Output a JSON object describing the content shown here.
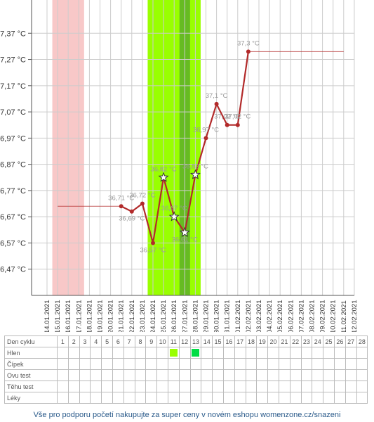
{
  "chart_data": {
    "type": "line",
    "ylabel": "",
    "xlabel": "",
    "ylim": [
      36.37,
      37.47
    ],
    "y_ticks": [
      "36,47 °C",
      "36,57 °C",
      "36,67 °C",
      "36,77 °C",
      "36,87 °C",
      "36,97 °C",
      "37,07 °C",
      "37,17 °C",
      "37,27 °C",
      "37,37 °C"
    ],
    "y_tick_values": [
      36.47,
      36.57,
      36.67,
      36.77,
      36.87,
      36.97,
      37.07,
      37.17,
      37.27,
      37.37
    ],
    "dates": [
      "14.01.2021",
      "15.01.2021",
      "16.01.2021",
      "17.01.2021",
      "18.01.2021",
      "19.01.2021",
      "20.01.2021",
      "21.01.2021",
      "22.01.2021",
      "23.01.2021",
      "24.01.2021",
      "25.01.2021",
      "26.01.2021",
      "27.01.2021",
      "28.01.2021",
      "29.01.2021",
      "30.01.2021",
      "31.01.2021",
      "01.02.2021",
      "02.02.2021",
      "03.02.2021",
      "04.02.2021",
      "05.02.2021",
      "06.02.2021",
      "07.02.2021",
      "08.02.2021",
      "09.02.2021",
      "10.02.2021",
      "11.02.2021",
      "12.02.2021"
    ],
    "x_tick_labels": [
      "14.01.2021",
      "15.01.2021",
      "16.01.2021",
      "17.01.2021",
      "18.01.2021",
      "19.01.2021",
      "20.01.2021",
      "21.01.2021",
      "22.01.2021",
      "23.01.2021",
      "24.01.2021",
      "25.01.2021",
      "26.01.2021",
      "27.01.2021",
      "28.01.2021",
      "29.01.2021",
      "30.01.2021",
      "31.01.2021",
      "01.02.2021",
      "02.02.2021",
      "03.02.2021",
      "04.02.2021",
      "05.02.2021",
      "06.02.2021",
      "07.02.2021",
      "08.02.2021",
      "09.02.2021",
      "10.02.2021",
      "11.02.2021",
      "12.02.2021"
    ],
    "series": [
      {
        "values": [
          {
            "date": "21.01.2021",
            "y": 36.71,
            "label": "36,71 °C",
            "marker": "dot"
          },
          {
            "date": "22.01.2021",
            "y": 36.69,
            "label": "36,69 °C",
            "marker": "dot"
          },
          {
            "date": "23.01.2021",
            "y": 36.72,
            "label": "36,72 °C",
            "marker": "dot"
          },
          {
            "date": "24.01.2021",
            "y": 36.57,
            "label": "36,57 °C",
            "marker": "dot"
          },
          {
            "date": "25.01.2021",
            "y": 36.82,
            "label": "36,82 °C",
            "marker": "star"
          },
          {
            "date": "26.01.2021",
            "y": 36.67,
            "label": "36,67 °C",
            "marker": "star"
          },
          {
            "date": "27.01.2021",
            "y": 36.61,
            "label": "36,61 °C",
            "marker": "star"
          },
          {
            "date": "28.01.2021",
            "y": 36.83,
            "label": "36,83 °C",
            "marker": "star"
          },
          {
            "date": "29.01.2021",
            "y": 36.97,
            "label": "36,97 °C",
            "marker": "dot"
          },
          {
            "date": "30.01.2021",
            "y": 37.1,
            "label": "37,1 °C",
            "marker": "dot"
          },
          {
            "date": "31.01.2021",
            "y": 37.02,
            "label": "37,02 °C",
            "marker": "dot"
          },
          {
            "date": "01.02.2021",
            "y": 37.02,
            "label": "37,02 °C",
            "marker": "dot"
          },
          {
            "date": "02.02.2021",
            "y": 37.3,
            "label": "37,3 °C",
            "marker": "dot"
          }
        ]
      }
    ],
    "reference_lines": [
      {
        "y": 36.71,
        "from": "15.01.2021",
        "to": "21.01.2021"
      },
      {
        "y": 37.3,
        "from": "02.02.2021",
        "to": "11.02.2021"
      }
    ],
    "bands": [
      {
        "from": "14.5",
        "to": "17.5",
        "color": "#f8c8c8"
      },
      {
        "from": "23.5",
        "to": "28.5",
        "color": "#99ff00"
      },
      {
        "from": "26.5",
        "to": "27.5",
        "color": "#66bb22"
      }
    ],
    "grid": true
  },
  "colors": {
    "line": "#b22a2a",
    "grid": "#cccccc",
    "period_band": "#f8c8c8",
    "fertile_band": "#99ff00",
    "ovulation_band": "#66bb22",
    "mucus_light": "#99ff00",
    "mucus_strong": "#00dd44"
  },
  "table": {
    "row_labels": [
      "Den cyklu",
      "Hlen",
      "Čípek",
      "Ovu test",
      "Těhu test",
      "Léky"
    ],
    "day_numbers": [
      "1",
      "2",
      "3",
      "4",
      "5",
      "6",
      "7",
      "8",
      "9",
      "10",
      "11",
      "12",
      "13",
      "14",
      "15",
      "16",
      "17",
      "18",
      "19",
      "20",
      "21",
      "22",
      "23",
      "24",
      "25",
      "26",
      "27",
      "28"
    ],
    "mucus_marks": [
      {
        "day": 11,
        "color": "#99ff00"
      },
      {
        "day": 13,
        "color": "#00dd44"
      }
    ]
  },
  "footer_text": "Vše pro podporu početí nakupujte za super ceny v novém eshopu womenzone.cz/snazeni"
}
